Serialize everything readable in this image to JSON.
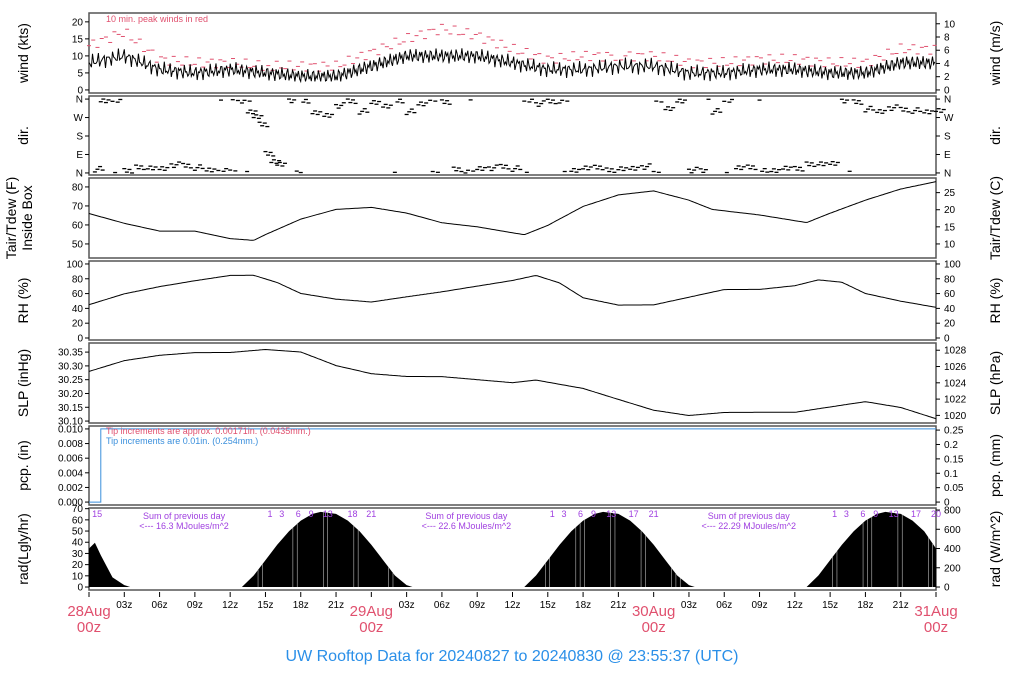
{
  "title": "UW Rooftop Data for 20240827  to  20240830 @ 23:55:37  (UTC)",
  "colors": {
    "peak": "#e0506e",
    "precip_new": "#3a8fdc",
    "precip_old": "#e0506e",
    "annot": "#a040e0",
    "date": "#e0506e",
    "title": "#2a8fe8"
  },
  "chart_data": [
    {
      "type": "line",
      "id": "wind",
      "ylabel": "wind (kts)",
      "ylabel_right": "wind (m/s)",
      "ylim": [
        -0.9,
        22.6
      ],
      "yticks": [
        0,
        5,
        10,
        15,
        20
      ],
      "yticks_right": [
        0,
        2,
        4,
        6,
        8,
        10
      ],
      "annotation": "10 min. peak winds in red",
      "x_hours": [
        0,
        3,
        6,
        9,
        12,
        15,
        18,
        21,
        24,
        27,
        30,
        33,
        36,
        39,
        42,
        45,
        48,
        51,
        54,
        57,
        60,
        63,
        66,
        69,
        72
      ],
      "values": [
        8,
        10,
        6,
        5,
        6,
        5,
        4,
        4,
        7,
        10,
        10,
        10,
        8,
        6,
        6,
        7,
        7,
        5,
        5,
        6,
        6,
        5,
        5,
        8,
        8
      ],
      "peak_values": [
        13,
        17,
        9,
        8,
        8,
        7,
        7,
        7,
        11,
        15,
        18,
        16,
        12,
        9,
        10,
        10,
        10,
        8,
        8,
        9,
        9,
        8,
        8,
        12,
        12
      ]
    },
    {
      "type": "scatter",
      "id": "dir",
      "ylabel": "dir.",
      "ylim": [
        -10,
        375
      ],
      "yticks": [
        0,
        90,
        180,
        270,
        360
      ],
      "ytick_labels": [
        "N",
        "E",
        "S",
        "W",
        "N"
      ],
      "points": [
        [
          0.5,
          20
        ],
        [
          1,
          355
        ],
        [
          2,
          350
        ],
        [
          3,
          15
        ],
        [
          4,
          25
        ],
        [
          5,
          30
        ],
        [
          6,
          20
        ],
        [
          7,
          40
        ],
        [
          8,
          35
        ],
        [
          9,
          25
        ],
        [
          10,
          15
        ],
        [
          11,
          10
        ],
        [
          12,
          5
        ],
        [
          13,
          355
        ],
        [
          13.5,
          300
        ],
        [
          14,
          270
        ],
        [
          14.5,
          240
        ],
        [
          15,
          90
        ],
        [
          15.5,
          60
        ],
        [
          16,
          40
        ],
        [
          17,
          355
        ],
        [
          18,
          350
        ],
        [
          19,
          300
        ],
        [
          20,
          280
        ],
        [
          21,
          330
        ],
        [
          22,
          350
        ],
        [
          23,
          300
        ],
        [
          24,
          345
        ],
        [
          25,
          320
        ],
        [
          26,
          355
        ],
        [
          27,
          300
        ],
        [
          28,
          340
        ],
        [
          29,
          355
        ],
        [
          30,
          350
        ],
        [
          31,
          15
        ],
        [
          32,
          10
        ],
        [
          33,
          20
        ],
        [
          34,
          25
        ],
        [
          35,
          30
        ],
        [
          36,
          20
        ],
        [
          37,
          355
        ],
        [
          38,
          340
        ],
        [
          39,
          350
        ],
        [
          40,
          355
        ],
        [
          41,
          15
        ],
        [
          42,
          20
        ],
        [
          43,
          30
        ],
        [
          44,
          10
        ],
        [
          45,
          25
        ],
        [
          46,
          20
        ],
        [
          47,
          30
        ],
        [
          48,
          355
        ],
        [
          49,
          320
        ],
        [
          50,
          350
        ],
        [
          51,
          15
        ],
        [
          52,
          10
        ],
        [
          53,
          300
        ],
        [
          54,
          355
        ],
        [
          55,
          20
        ],
        [
          56,
          30
        ],
        [
          57,
          10
        ],
        [
          58,
          15
        ],
        [
          59,
          20
        ],
        [
          60,
          25
        ],
        [
          61,
          40
        ],
        [
          62,
          50
        ],
        [
          63,
          45
        ],
        [
          64,
          355
        ],
        [
          65,
          345
        ],
        [
          66,
          310
        ],
        [
          67,
          300
        ],
        [
          68,
          320
        ],
        [
          69,
          310
        ],
        [
          70,
          305
        ],
        [
          71,
          300
        ],
        [
          72,
          300
        ]
      ]
    },
    {
      "type": "line",
      "id": "tair",
      "ylabel": "Tair/Tdew (F)\nInside Box",
      "ylabel_right": "Tair/Tdew (C)",
      "ylim": [
        42.6,
        84.7
      ],
      "yticks": [
        50,
        60,
        70,
        80
      ],
      "yticks_right": [
        10,
        15,
        20,
        25
      ],
      "x_hours": [
        0,
        3,
        6,
        9,
        12,
        14,
        15,
        18,
        21,
        24,
        27,
        30,
        33,
        36,
        37,
        39,
        42,
        45,
        48,
        51,
        53,
        57,
        60,
        61,
        63,
        66,
        69,
        72
      ],
      "values": [
        66,
        61,
        57,
        57,
        53,
        52,
        55,
        63,
        68,
        69,
        66,
        61,
        59,
        56,
        55,
        60,
        70,
        76,
        78,
        73,
        68,
        65,
        62,
        61,
        66,
        73,
        79,
        83
      ]
    },
    {
      "type": "line",
      "id": "rh",
      "ylabel": "RH (%)",
      "ylabel_right": "RH (%)",
      "ylim": [
        -2.7,
        104
      ],
      "yticks": [
        0,
        20,
        40,
        60,
        80,
        100
      ],
      "yticks_right": [
        0,
        20,
        40,
        60,
        80,
        100
      ],
      "x_hours": [
        0,
        3,
        6,
        9,
        12,
        14,
        16,
        18,
        21,
        24,
        27,
        30,
        33,
        36,
        38,
        40,
        42,
        45,
        48,
        51,
        54,
        57,
        60,
        62,
        64,
        66,
        69,
        72
      ],
      "values": [
        45,
        60,
        70,
        78,
        85,
        85,
        75,
        60,
        52,
        48,
        55,
        62,
        70,
        78,
        85,
        75,
        55,
        45,
        45,
        55,
        65,
        65,
        70,
        78,
        75,
        60,
        50,
        42
      ]
    },
    {
      "type": "line",
      "id": "slp",
      "ylabel": "SLP (inHg)",
      "ylabel_right": "SLP (hPa)",
      "ylim": [
        30.093,
        30.383
      ],
      "yticks": [
        30.1,
        30.15,
        30.2,
        30.25,
        30.3,
        30.35
      ],
      "yticks_right": [
        1020,
        1022,
        1024,
        1026,
        1028
      ],
      "x_hours": [
        0,
        3,
        6,
        9,
        12,
        15,
        18,
        21,
        24,
        27,
        30,
        33,
        36,
        38,
        42,
        45,
        48,
        51,
        54,
        57,
        60,
        63,
        66,
        69,
        72
      ],
      "values": [
        30.28,
        30.32,
        30.34,
        30.35,
        30.35,
        30.36,
        30.35,
        30.3,
        30.27,
        30.26,
        30.26,
        30.25,
        30.24,
        30.25,
        30.22,
        30.18,
        30.14,
        30.12,
        30.13,
        30.13,
        30.13,
        30.15,
        30.17,
        30.15,
        30.11
      ]
    },
    {
      "type": "line",
      "id": "pcp",
      "ylabel": "pcp. (in)",
      "ylabel_right": "pcp. (mm)",
      "ylim": [
        -0.0004,
        0.0104
      ],
      "yticks": [
        0,
        0.002,
        0.004,
        0.006,
        0.008,
        0.01
      ],
      "ytick_labels": [
        "0.000",
        "0.002",
        "0.004",
        "0.006",
        "0.008",
        "0.010"
      ],
      "yticks_right": [
        0,
        0.05,
        0.1,
        0.15,
        0.2,
        0.25
      ],
      "note_old": "Tip increments are approx. 0.00171in. (0.0435mm.)",
      "note_new": "Tip increments are 0.01in. (0.254mm.)",
      "x_hours": [
        0,
        1,
        1,
        72
      ],
      "values": [
        0,
        0,
        0.01,
        0.01
      ]
    },
    {
      "type": "area",
      "id": "rad",
      "ylabel": "rad(Lgly/hr)",
      "ylabel_right": "rad (W/m^2)",
      "ylim": [
        -31,
        821
      ],
      "yticks_left": [
        0,
        10,
        20,
        30,
        40,
        50,
        60,
        70
      ],
      "yticks_right": [
        0,
        200,
        400,
        600,
        800
      ],
      "x_hours": [
        0,
        0.5,
        1,
        2,
        3,
        3.5,
        13,
        14,
        15,
        16,
        17,
        18,
        19,
        19.7,
        21,
        22,
        23,
        24,
        25,
        26,
        27,
        27.5,
        37,
        38,
        39,
        40,
        41,
        42,
        43,
        43.7,
        45,
        46,
        47,
        48,
        49,
        50,
        51,
        51.5,
        61,
        62,
        63,
        64,
        65,
        66,
        67,
        67.7,
        69,
        70,
        71,
        72
      ],
      "values": [
        400,
        460,
        330,
        100,
        20,
        0,
        0,
        120,
        280,
        440,
        580,
        690,
        760,
        780,
        760,
        690,
        580,
        440,
        280,
        120,
        20,
        0,
        0,
        120,
        280,
        440,
        580,
        690,
        760,
        780,
        760,
        690,
        580,
        440,
        280,
        120,
        20,
        0,
        0,
        120,
        280,
        440,
        580,
        690,
        760,
        780,
        760,
        690,
        580,
        400
      ],
      "sum_label": "Sum of previous day",
      "sums": [
        {
          "x_hour": 4,
          "text": "<--- 16.3 MJoules/m^2"
        },
        {
          "x_hour": 28,
          "text": "<--- 22.6 MJoules/m^2"
        },
        {
          "x_hour": 52,
          "text": "<--- 22.29 MJoules/m^2"
        }
      ],
      "hour_marks": [
        {
          "x_hour": 0.1,
          "t": "15"
        },
        {
          "x_hour": 15,
          "t": "1"
        },
        {
          "x_hour": 16,
          "t": "3"
        },
        {
          "x_hour": 17.4,
          "t": "6"
        },
        {
          "x_hour": 18.5,
          "t": "9"
        },
        {
          "x_hour": 19.7,
          "t": "13"
        },
        {
          "x_hour": 21.8,
          "t": "18"
        },
        {
          "x_hour": 23.4,
          "t": "21"
        },
        {
          "x_hour": 39,
          "t": "1"
        },
        {
          "x_hour": 40,
          "t": "3"
        },
        {
          "x_hour": 41.4,
          "t": "6"
        },
        {
          "x_hour": 42.5,
          "t": "9"
        },
        {
          "x_hour": 43.8,
          "t": "13"
        },
        {
          "x_hour": 45.7,
          "t": "17"
        },
        {
          "x_hour": 47.4,
          "t": "21"
        },
        {
          "x_hour": 63,
          "t": "1"
        },
        {
          "x_hour": 64,
          "t": "3"
        },
        {
          "x_hour": 65.4,
          "t": "6"
        },
        {
          "x_hour": 66.5,
          "t": "9"
        },
        {
          "x_hour": 67.8,
          "t": "13"
        },
        {
          "x_hour": 69.7,
          "t": "17"
        },
        {
          "x_hour": 71.4,
          "t": "20"
        }
      ]
    }
  ],
  "xaxis": {
    "range_hours": [
      0,
      72
    ],
    "minor": [
      "03z",
      "06z",
      "09z",
      "12z",
      "15z",
      "18z",
      "21z"
    ],
    "days": [
      {
        "date": "28Aug",
        "hour": "00z"
      },
      {
        "date": "29Aug",
        "hour": "00z"
      },
      {
        "date": "30Aug",
        "hour": "00z"
      },
      {
        "date": "31Aug",
        "hour": "00z"
      }
    ]
  }
}
